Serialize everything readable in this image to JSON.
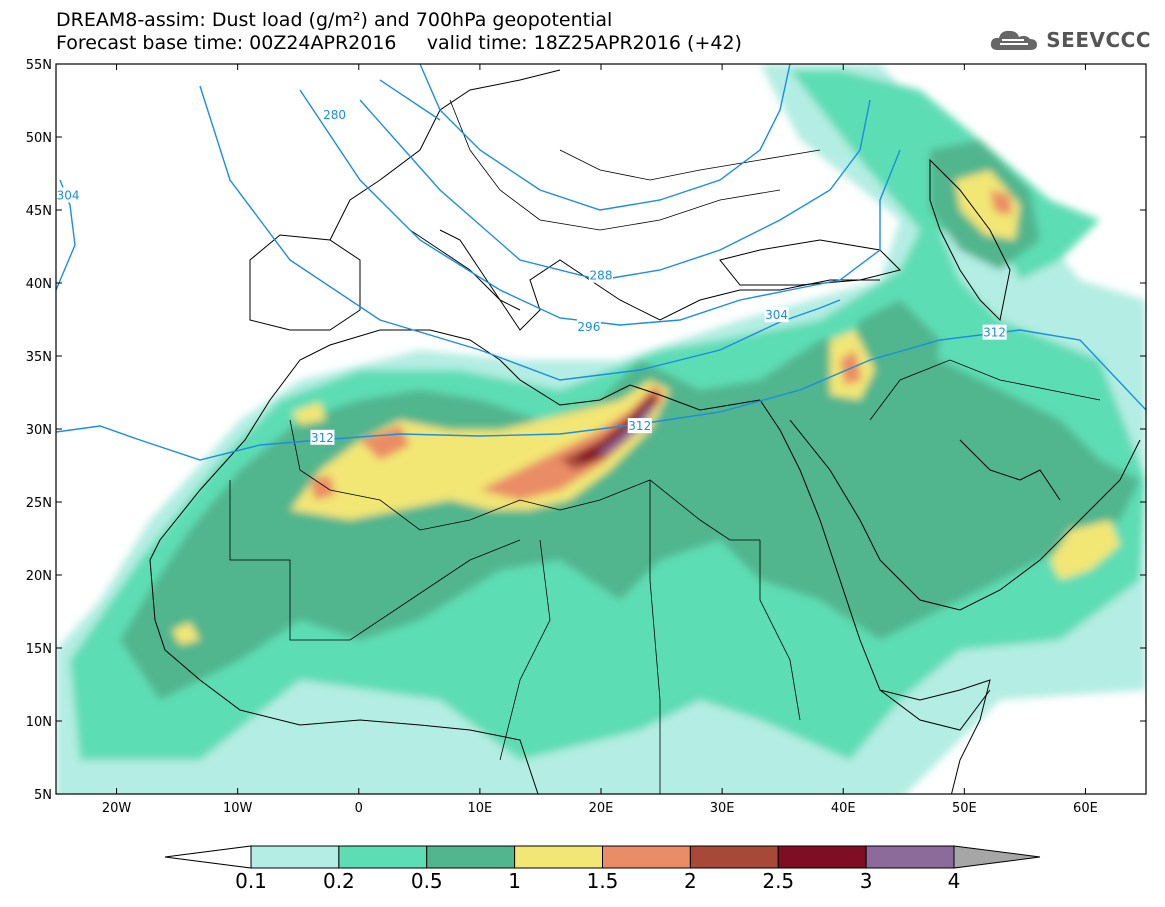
{
  "title": {
    "line1": "DREAM8-assim: Dust load (g/m²) and 700hPa geopotential",
    "line2": "Forecast base time: 00Z24APR2016     valid time: 18Z25APR2016 (+42)"
  },
  "logo": {
    "text": "SEEVCCC",
    "icon": "cloud-icon"
  },
  "map": {
    "lon_range": [
      -25,
      65
    ],
    "lat_range": [
      5,
      55
    ],
    "x_ticks": [
      "20W",
      "10W",
      "0",
      "10E",
      "20E",
      "30E",
      "40E",
      "50E",
      "60E"
    ],
    "y_ticks": [
      "55N",
      "50N",
      "45N",
      "40N",
      "35N",
      "30N",
      "25N",
      "20N",
      "15N",
      "10N",
      "5N"
    ],
    "contour_labels": [
      {
        "text": "280",
        "lon": -2,
        "lat": 51.5
      },
      {
        "text": "304",
        "lon": -24,
        "lat": 46
      },
      {
        "text": "288",
        "lon": 20,
        "lat": 40.5
      },
      {
        "text": "296",
        "lon": 19,
        "lat": 37
      },
      {
        "text": "304",
        "lon": 34.5,
        "lat": 37.8
      },
      {
        "text": "312",
        "lon": 52.5,
        "lat": 36.6
      },
      {
        "text": "312",
        "lon": -3,
        "lat": 29.4
      },
      {
        "text": "312",
        "lon": 23.2,
        "lat": 30.2
      }
    ]
  },
  "colorbar": {
    "colors": [
      "#ffffff",
      "#b4ede3",
      "#5dddb4",
      "#51b58e",
      "#f2e675",
      "#ea8d66",
      "#a74838",
      "#7f0e24",
      "#8c6a9a",
      "#a6a6a6"
    ],
    "labels": [
      "0.1",
      "0.2",
      "0.5",
      "1",
      "1.5",
      "2",
      "2.5",
      "3",
      "4"
    ]
  }
}
